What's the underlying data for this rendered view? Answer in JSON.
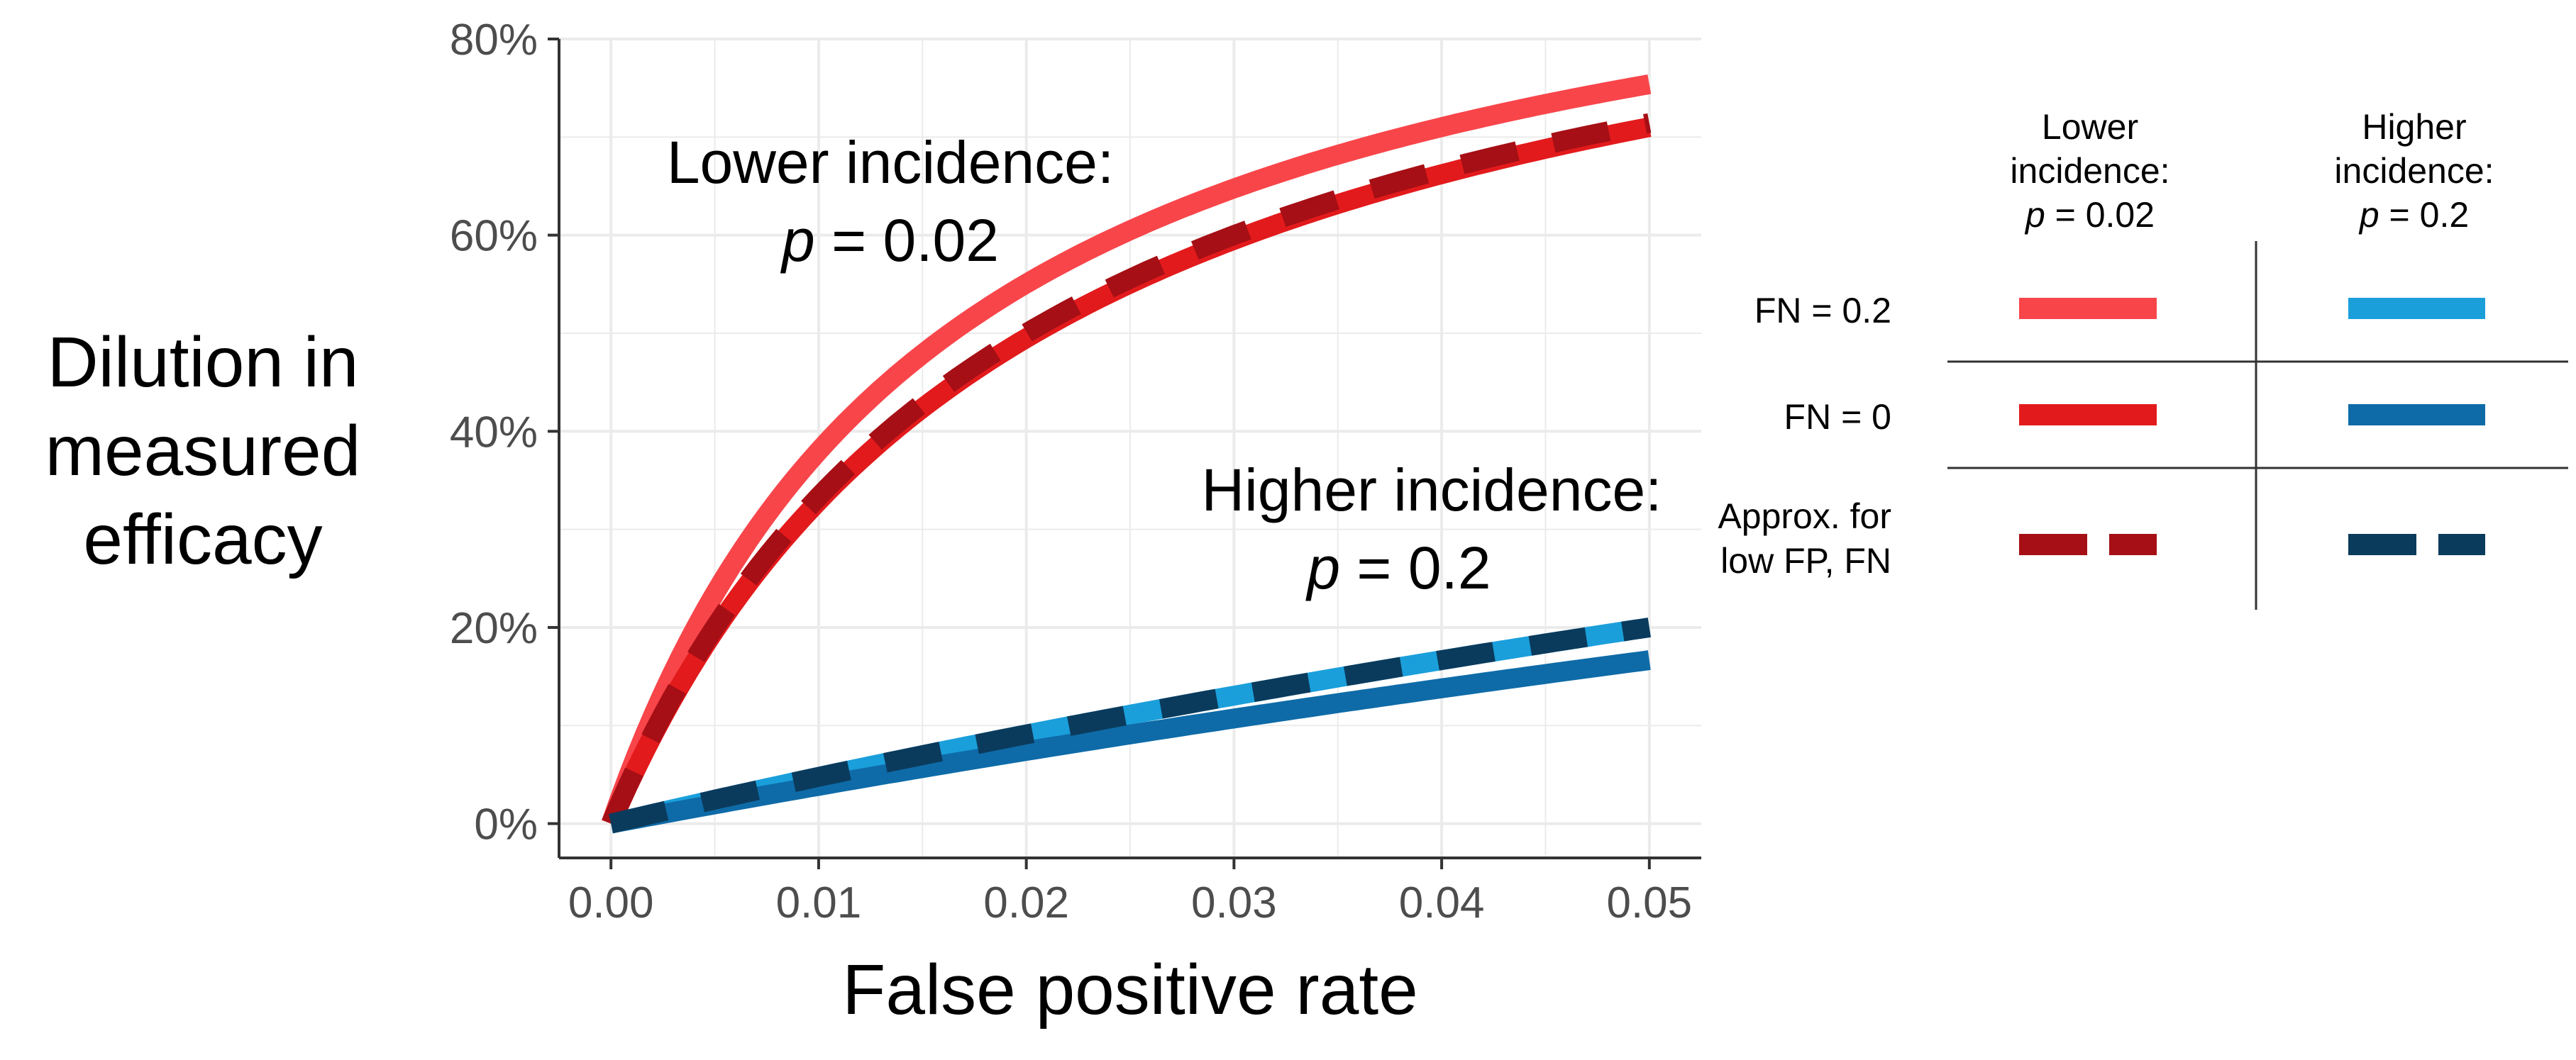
{
  "chart_data": {
    "type": "line",
    "title": "",
    "xlabel": "False positive rate",
    "ylabel": [
      "Dilution in",
      "measured",
      "efficacy"
    ],
    "xlim": [
      -0.0025,
      0.0525
    ],
    "ylim": [
      -0.035,
      0.8
    ],
    "xticks": [
      0.0,
      0.01,
      0.02,
      0.03,
      0.04,
      0.05
    ],
    "xtick_labels": [
      "0.00",
      "0.01",
      "0.02",
      "0.03",
      "0.04",
      "0.05"
    ],
    "yticks": [
      0.0,
      0.2,
      0.4,
      0.6,
      0.8
    ],
    "ytick_labels": [
      "0%",
      "20%",
      "40%",
      "60%",
      "80%"
    ],
    "grid": true,
    "series": [
      {
        "name": "Lower incidence: p = 0.02, FN = 0.2",
        "p": 0.02,
        "fn": 0.2,
        "formula": "exact",
        "style": "solid",
        "color": "#F8454A",
        "x": [
          0.0,
          0.005,
          0.01,
          0.015,
          0.02,
          0.025,
          0.03,
          0.035,
          0.04,
          0.045,
          0.05
        ],
        "values": [
          0.0,
          0.237,
          0.383,
          0.483,
          0.554,
          0.609,
          0.651,
          0.686,
          0.715,
          0.739,
          0.759
        ]
      },
      {
        "name": "Lower incidence: p = 0.02, FN = 0",
        "p": 0.02,
        "fn": 0.0,
        "formula": "exact",
        "style": "solid",
        "color": "#E31A1C",
        "x": [
          0.0,
          0.005,
          0.01,
          0.015,
          0.02,
          0.025,
          0.03,
          0.035,
          0.04,
          0.045,
          0.05
        ],
        "values": [
          0.0,
          0.196,
          0.33,
          0.425,
          0.497,
          0.554,
          0.599,
          0.636,
          0.667,
          0.694,
          0.716
        ]
      },
      {
        "name": "Lower incidence: p = 0.02, Approx. for low FP, FN",
        "p": 0.02,
        "fn": 0.0,
        "formula": "approx",
        "style": "dashed",
        "color": "#A50F15",
        "x": [
          0.0,
          0.005,
          0.01,
          0.015,
          0.02,
          0.025,
          0.03,
          0.035,
          0.04,
          0.045,
          0.05
        ],
        "values": [
          0.0,
          0.2,
          0.333,
          0.429,
          0.5,
          0.556,
          0.6,
          0.636,
          0.667,
          0.692,
          0.714
        ]
      },
      {
        "name": "Higher incidence: p = 0.2, FN = 0.2",
        "p": 0.2,
        "fn": 0.2,
        "formula": "exact",
        "style": "solid",
        "color": "#1A9FDB",
        "x": [
          0.0,
          0.005,
          0.01,
          0.015,
          0.02,
          0.025,
          0.03,
          0.035,
          0.04,
          0.045,
          0.05
        ],
        "values": [
          0.0,
          0.03,
          0.059,
          0.086,
          0.111,
          0.135,
          0.158,
          0.18,
          0.2,
          0.22,
          0.238
        ]
      },
      {
        "name": "Higher incidence: p = 0.2, FN = 0",
        "p": 0.2,
        "fn": 0.0,
        "formula": "exact",
        "style": "solid",
        "color": "#0E6BA8",
        "x": [
          0.0,
          0.005,
          0.01,
          0.015,
          0.02,
          0.025,
          0.03,
          0.035,
          0.04,
          0.045,
          0.05
        ],
        "values": [
          0.0,
          0.024,
          0.048,
          0.07,
          0.091,
          0.112,
          0.131,
          0.151,
          0.168,
          0.186,
          0.202
        ]
      },
      {
        "name": "Higher incidence: p = 0.2, Approx. for low FP, FN",
        "p": 0.2,
        "fn": 0.0,
        "formula": "approx",
        "style": "dashed",
        "color": "#0B3B5C",
        "x": [
          0.0,
          0.005,
          0.01,
          0.015,
          0.02,
          0.025,
          0.03,
          0.035,
          0.04,
          0.045,
          0.05
        ],
        "values": [
          0.0,
          0.02,
          0.038,
          0.057,
          0.074,
          0.091,
          0.107,
          0.123,
          0.138,
          0.153,
          0.167
        ]
      }
    ],
    "annotations": [
      {
        "line1": "Lower incidence:",
        "line2_italic": "p",
        "line2_rest": " = 0.02"
      },
      {
        "line1": "Higher incidence:",
        "line2_italic": "p",
        "line2_rest": " = 0.2"
      }
    ],
    "legend": {
      "placement": "right",
      "column_headers": [
        {
          "lines": [
            "Lower",
            "incidence:"
          ],
          "p_italic": "p",
          "p_rest": " = 0.02"
        },
        {
          "lines": [
            "Higher",
            "incidence:"
          ],
          "p_italic": "p",
          "p_rest": " = 0.2"
        }
      ],
      "row_labels": [
        [
          "FN = 0.2"
        ],
        [
          "FN = 0"
        ],
        [
          "Approx. for",
          "low FP, FN"
        ]
      ]
    }
  },
  "colors": {
    "grid": "#EBEBEB",
    "axis": "#333333",
    "tick_text": "#4d4d4d"
  }
}
